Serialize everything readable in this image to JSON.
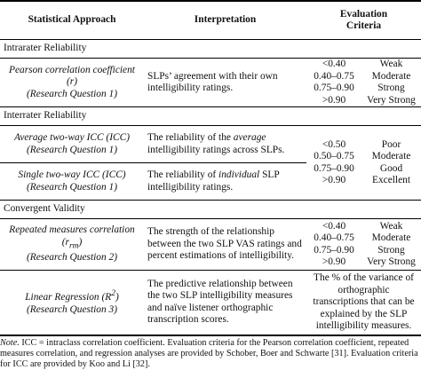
{
  "header": {
    "columns": [
      "Statistical Approach",
      "Interpretation",
      "Evaluation Criteria"
    ]
  },
  "sections": [
    {
      "title": "Intrarater Reliability",
      "rows": [
        {
          "approach": [
            "Pearson correlation coefficient (r)"
          ],
          "question": "(Research Question 1)",
          "interpretation": [
            "SLPs’ agreement with their own intelligibility ratings."
          ]
        }
      ],
      "criteria": {
        "ranges": [
          "<0.40",
          "0.40–0.75",
          "0.75–0.90",
          ">0.90"
        ],
        "labels": [
          "Weak",
          "Moderate",
          "Strong",
          "Very Strong"
        ]
      }
    },
    {
      "title": "Interrater Reliability",
      "rows": [
        {
          "approach": [
            "Average two-way ICC (ICC)"
          ],
          "question": "(Research Question 1)",
          "interpretation": [
            "The reliability of the ",
            "average",
            " intelligibility ratings across SLPs."
          ]
        },
        {
          "approach": [
            "Single two-way ICC (ICC)"
          ],
          "question": "(Research Question 1)",
          "interpretation": [
            "The reliability of ",
            "individual",
            " SLP intelligibility ratings."
          ]
        }
      ],
      "criteria": {
        "ranges": [
          "<0.50",
          "0.50–0.75",
          "0.75–0.90",
          ">0.90"
        ],
        "labels": [
          "Poor",
          "Moderate",
          "Good",
          "Excellent"
        ]
      }
    },
    {
      "title": "Convergent Validity",
      "rows": [
        {
          "approach": [
            "Repeated measures correlation (r",
            "rm",
            ")"
          ],
          "question": "(Research Question 2)",
          "interpretation": [
            "The strength of the relationship between the two SLP VAS ratings and percent estimations of intelligibility."
          ],
          "criteria": {
            "ranges": [
              "<0.40",
              "0.40–0.75",
              "0.75–0.90",
              ">0.90"
            ],
            "labels": [
              "Weak",
              "Moderate",
              "Strong",
              "Very Strong"
            ]
          }
        },
        {
          "approach": [
            "Linear Regression (R",
            "2",
            ")"
          ],
          "question": "(Research Question 3)",
          "interpretation": [
            "The predictive relationship between the two SLP intelligibility measures and naïve listener orthographic transcription scores."
          ],
          "criteria_text": "The % of the variance of orthographic transcriptions that can be explained by the SLP intelligibility measures."
        }
      ]
    }
  ],
  "note": {
    "label": "Note.",
    "text": " ICC = intraclass correlation coefficient. Evaluation criteria for the Pearson correlation coefficient, repeated measures correlation, and regression analyses are provided by Schober, Boer and Schwarte [31]. Evaluation criteria for ICC are provided by Koo and Li [32]."
  }
}
